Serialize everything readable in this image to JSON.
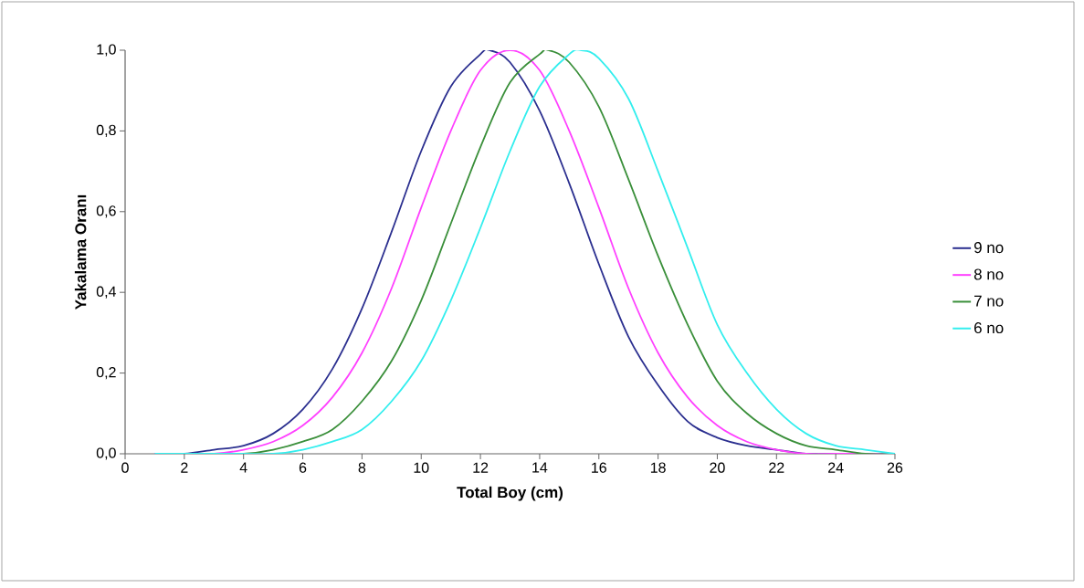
{
  "chart_data": {
    "type": "line",
    "xlabel": "Total Boy (cm)",
    "ylabel": "Yakalama Oranı",
    "xlim": [
      0,
      26
    ],
    "xticks": [
      0,
      2,
      4,
      6,
      8,
      10,
      12,
      14,
      16,
      18,
      20,
      22,
      24,
      26
    ],
    "ylim": [
      0,
      1
    ],
    "yticks": [
      {
        "value": 0,
        "label": "0,0"
      },
      {
        "value": 0.2,
        "label": "0,2"
      },
      {
        "value": 0.4,
        "label": "0,4"
      },
      {
        "value": 0.6,
        "label": "0,6"
      },
      {
        "value": 0.8,
        "label": "0,8"
      },
      {
        "value": 1,
        "label": "1,0"
      }
    ],
    "grid": false,
    "legend": "right",
    "marker": "none",
    "line_style": "solid",
    "series": [
      {
        "name": "9 no",
        "color": "#2b2f8f",
        "x": [
          1,
          2,
          3,
          4,
          5,
          6,
          7,
          8,
          9,
          10,
          11,
          12,
          12.3,
          13,
          14,
          15,
          16,
          17,
          18,
          19,
          20,
          21,
          22,
          23,
          24
        ],
        "values": [
          0,
          0,
          0.01,
          0.02,
          0.05,
          0.11,
          0.21,
          0.36,
          0.55,
          0.75,
          0.91,
          0.99,
          1,
          0.97,
          0.85,
          0.67,
          0.47,
          0.29,
          0.17,
          0.08,
          0.04,
          0.02,
          0.01,
          0,
          0
        ]
      },
      {
        "name": "8 no",
        "color": "#ff40ff",
        "x": [
          1,
          2,
          3,
          4,
          5,
          6,
          7,
          8,
          9,
          10,
          11,
          12,
          13,
          14,
          15,
          16,
          17,
          18,
          19,
          20,
          21,
          22,
          23,
          24,
          25,
          26
        ],
        "values": [
          0,
          0,
          0,
          0.01,
          0.03,
          0.07,
          0.14,
          0.25,
          0.41,
          0.61,
          0.8,
          0.95,
          1,
          0.95,
          0.8,
          0.61,
          0.41,
          0.25,
          0.14,
          0.07,
          0.03,
          0.01,
          0,
          0,
          0,
          0
        ]
      },
      {
        "name": "7 no",
        "color": "#3a8f3a",
        "x": [
          3,
          4,
          5,
          6,
          7,
          8,
          9,
          10,
          11,
          12,
          13,
          14,
          14.3,
          15,
          16,
          17,
          18,
          19,
          20,
          21,
          22,
          23,
          24,
          25,
          26
        ],
        "values": [
          0,
          0,
          0.01,
          0.03,
          0.06,
          0.13,
          0.23,
          0.38,
          0.57,
          0.76,
          0.92,
          0.99,
          1,
          0.97,
          0.86,
          0.68,
          0.49,
          0.32,
          0.18,
          0.1,
          0.05,
          0.02,
          0.01,
          0,
          0
        ]
      },
      {
        "name": "6 no",
        "color": "#33eeee",
        "x": [
          1,
          2,
          3,
          4,
          5,
          6,
          7,
          8,
          9,
          10,
          11,
          12,
          13,
          14,
          15,
          15.4,
          16,
          17,
          18,
          19,
          20,
          21,
          22,
          23,
          24,
          25,
          26
        ],
        "values": [
          0,
          0,
          0,
          0,
          0,
          0.01,
          0.03,
          0.06,
          0.13,
          0.23,
          0.38,
          0.56,
          0.75,
          0.91,
          0.99,
          1,
          0.98,
          0.88,
          0.7,
          0.51,
          0.32,
          0.2,
          0.11,
          0.05,
          0.02,
          0.01,
          0
        ]
      }
    ]
  }
}
